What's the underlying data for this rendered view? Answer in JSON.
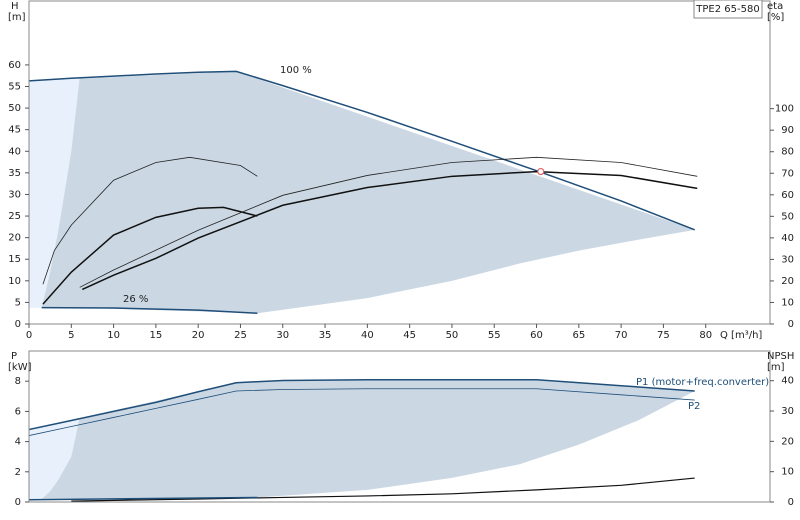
{
  "chart_data": [
    {
      "type": "line",
      "title": "TPE2 65-580",
      "xlabel": "Q [m³/h]",
      "ylabel": [
        "H",
        "[m]"
      ],
      "y2label": [
        "eta",
        "[%]"
      ],
      "xlim": [
        0,
        87.6
      ],
      "xticks": [
        0,
        5,
        10,
        15,
        20,
        25,
        30,
        35,
        40,
        45,
        50,
        55,
        60,
        65,
        70,
        75,
        80
      ],
      "ylim": [
        0,
        74.8
      ],
      "yticks": [
        0,
        5,
        10,
        15,
        20,
        25,
        30,
        35,
        40,
        45,
        50,
        55,
        60
      ],
      "y2lim": [
        0,
        150
      ],
      "y2ticks": [
        0,
        10,
        20,
        30,
        40,
        50,
        60,
        70,
        80,
        90,
        100
      ],
      "annotations": [
        "100 %",
        "26 %"
      ],
      "regions": [
        {
          "color": "#cbd8e4",
          "x": [
            0,
            24.5,
            78.7,
            72,
            65,
            58,
            50,
            40,
            27,
            15,
            6,
            1.5,
            0
          ],
          "values": [
            56.3,
            58.5,
            21.8,
            19.5,
            17,
            14,
            10,
            6,
            2.5,
            3.2,
            3.8,
            3.8,
            3.8
          ]
        },
        {
          "color": "#e8f1fb",
          "x": [
            0,
            6,
            5,
            3.5,
            2.5,
            1.5,
            0
          ],
          "values": [
            56.3,
            57.2,
            40,
            22,
            12,
            3.8,
            3.8
          ]
        }
      ],
      "series": [
        {
          "color": "#1f4e79",
          "width": 1.5,
          "x": [
            0,
            5,
            10,
            15,
            20,
            24.5,
            30,
            40,
            50,
            60,
            70,
            78.7
          ],
          "values": [
            56.3,
            56.9,
            57.4,
            57.9,
            58.3,
            58.5,
            55.2,
            49,
            42.3,
            35.5,
            28.5,
            21.8
          ]
        },
        {
          "color": "#1f4e79",
          "width": 1.5,
          "x": [
            1.5,
            10,
            20,
            27
          ],
          "values": [
            3.8,
            3.7,
            3.2,
            2.5
          ]
        },
        {
          "color": "#222222",
          "width": 0.8,
          "x": [
            1.65,
            3,
            5,
            10,
            15,
            19,
            25,
            27
          ],
          "values": [
            9.2,
            17,
            22.9,
            33.3,
            37.4,
            38.6,
            36.7,
            34.2
          ]
        },
        {
          "color": "#111111",
          "width": 1.5,
          "x": [
            1.65,
            5,
            10,
            15,
            20,
            23,
            27
          ],
          "values": [
            4.6,
            12,
            20.6,
            24.7,
            26.8,
            27,
            25
          ]
        },
        {
          "color": "#222222",
          "width": 0.8,
          "x": [
            6,
            10,
            20,
            30,
            40,
            50,
            60,
            70,
            79
          ],
          "values": [
            8.5,
            12.5,
            21.7,
            29.8,
            34.4,
            37.4,
            38.6,
            37.4,
            34.2
          ]
        },
        {
          "color": "#111111",
          "width": 1.5,
          "x": [
            6.3,
            10,
            15,
            20,
            30,
            40,
            50,
            60,
            70,
            79
          ],
          "values": [
            8,
            11.3,
            15.2,
            19.9,
            27.5,
            31.6,
            34.2,
            35.3,
            34.4,
            31.4
          ]
        }
      ],
      "points": [
        {
          "x": 60.5,
          "y": 35.3,
          "color": "#e06060"
        }
      ]
    },
    {
      "type": "line",
      "ylabel": [
        "P",
        "[kW]"
      ],
      "y2label": [
        "NPSH",
        "[m]"
      ],
      "xlim": [
        0,
        87.6
      ],
      "ylim": [
        0,
        10
      ],
      "yticks": [
        0,
        2,
        4,
        6,
        8
      ],
      "y2lim": [
        0,
        49.8
      ],
      "y2ticks": [
        0,
        10,
        20,
        30,
        40
      ],
      "regions": [
        {
          "color": "#cbd8e4",
          "x": [
            0,
            24.5,
            30,
            60,
            70,
            78.7,
            72,
            65,
            58,
            50,
            40,
            27,
            0
          ],
          "values": [
            4.8,
            7.9,
            8.05,
            8.1,
            7.7,
            7.35,
            5.4,
            3.8,
            2.5,
            1.6,
            0.8,
            0.3,
            0.2
          ]
        },
        {
          "color": "#e8f1fb",
          "x": [
            0,
            6,
            5,
            3.5,
            2.5,
            1.5,
            0
          ],
          "values": [
            4.8,
            5.6,
            3,
            1.5,
            0.7,
            0.2,
            0.2
          ]
        }
      ],
      "series": [
        {
          "name": "P1 (motor+freq.converter)",
          "color": "#1f4e79",
          "width": 1.5,
          "x": [
            0,
            5,
            10,
            15,
            20,
            24.5,
            30,
            40,
            50,
            60,
            70,
            78.7
          ],
          "values": [
            4.8,
            5.4,
            6.0,
            6.6,
            7.3,
            7.9,
            8.05,
            8.1,
            8.1,
            8.1,
            7.7,
            7.35
          ]
        },
        {
          "name": "P2",
          "color": "#1f4e79",
          "width": 0.8,
          "x": [
            0,
            5,
            10,
            15,
            20,
            24.5,
            30,
            40,
            50,
            60,
            70,
            78.7
          ],
          "values": [
            4.4,
            5.0,
            5.6,
            6.2,
            6.8,
            7.35,
            7.45,
            7.5,
            7.5,
            7.5,
            7.1,
            6.75
          ]
        },
        {
          "color": "#111111",
          "width": 1.2,
          "axis": "y2",
          "x": [
            5,
            20,
            30,
            40,
            50,
            60,
            70,
            78.7
          ],
          "values": [
            0.3,
            1,
            1.5,
            2,
            2.7,
            4,
            5.5,
            7.9
          ]
        },
        {
          "color": "#1f4e79",
          "width": 1.5,
          "x": [
            0,
            27
          ],
          "values": [
            0.15,
            0.3
          ]
        }
      ]
    }
  ]
}
